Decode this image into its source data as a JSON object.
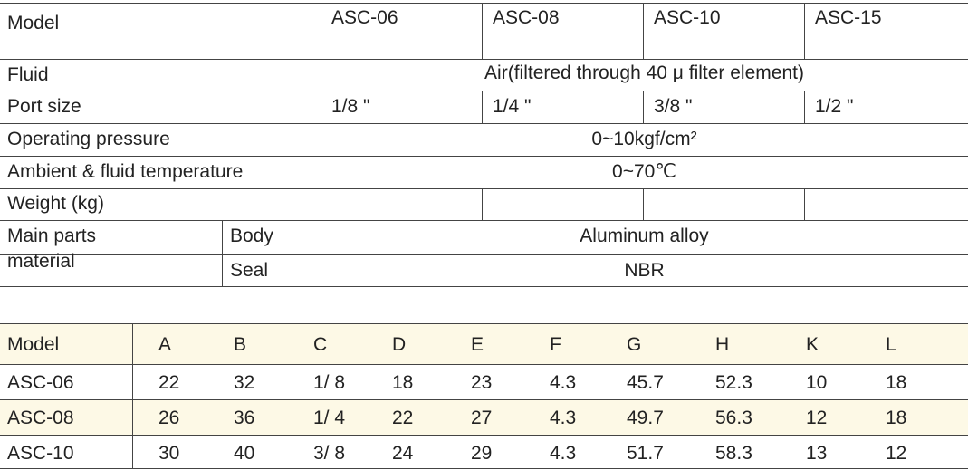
{
  "spec_table": {
    "model_label": "Model",
    "models": [
      "ASC-06",
      "ASC-08",
      "ASC-10",
      "ASC-15"
    ],
    "fluid": {
      "label": "Fluid",
      "value": "Air(filtered through 40 μ filter element)"
    },
    "port_size": {
      "label": "Port size",
      "values": [
        "1/8 \"",
        "1/4 \"",
        "3/8 \"",
        "1/2 \""
      ]
    },
    "operating_pressure": {
      "label": "Operating pressure",
      "value": "0~10kgf/cm²"
    },
    "temperature": {
      "label": "Ambient & fluid temperature",
      "value": "0~70℃"
    },
    "weight": {
      "label": "Weight (kg)"
    },
    "material": {
      "label": "Main parts material",
      "parts": [
        {
          "label": "Body",
          "value": "Aluminum alloy"
        },
        {
          "label": "Seal",
          "value": "NBR"
        }
      ]
    }
  },
  "dimension_table": {
    "header": [
      "Model",
      "A",
      "B",
      "C",
      "D",
      "E",
      "F",
      "G",
      "H",
      "K",
      "L"
    ],
    "rows": [
      [
        "ASC-06",
        22,
        32,
        "1/ 8",
        18,
        23,
        4.3,
        45.7,
        52.3,
        10,
        18
      ],
      [
        "ASC-08",
        26,
        36,
        "1/ 4",
        22,
        27,
        4.3,
        49.7,
        56.3,
        12,
        18
      ],
      [
        "ASC-10",
        30,
        40,
        "3/ 8",
        24,
        29,
        4.3,
        51.7,
        58.3,
        13,
        12
      ]
    ]
  }
}
